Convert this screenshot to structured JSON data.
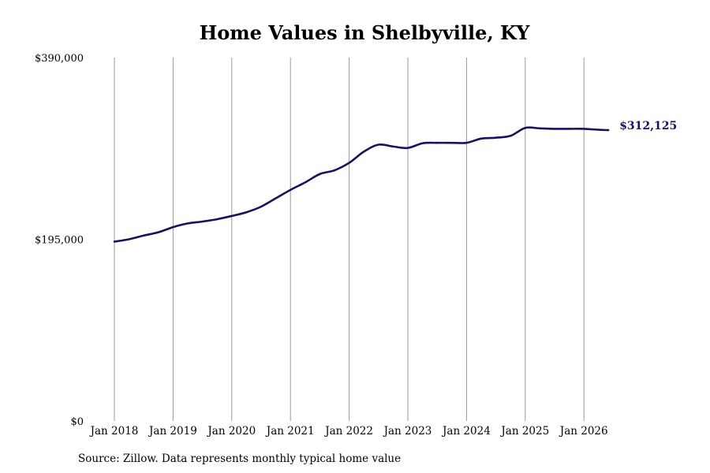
{
  "chart_data": {
    "type": "line",
    "title": "Home Values in Shelbyville, KY",
    "source": "Source: Zillow. Data represents monthly typical home value",
    "end_label": "$312,125",
    "ylim": [
      0,
      390000
    ],
    "y_ticks": [
      {
        "value": 0,
        "label": "$0"
      },
      {
        "value": 195000,
        "label": "$195,000"
      },
      {
        "value": 390000,
        "label": "$390,000"
      }
    ],
    "x_ticks": [
      {
        "value": "2018-01",
        "label": "Jan 2018"
      },
      {
        "value": "2019-01",
        "label": "Jan 2019"
      },
      {
        "value": "2020-01",
        "label": "Jan 2020"
      },
      {
        "value": "2021-01",
        "label": "Jan 2021"
      },
      {
        "value": "2022-01",
        "label": "Jan 2022"
      },
      {
        "value": "2023-01",
        "label": "Jan 2023"
      },
      {
        "value": "2024-01",
        "label": "Jan 2024"
      },
      {
        "value": "2025-01",
        "label": "Jan 2025"
      },
      {
        "value": "2026-01",
        "label": "Jan 2026"
      }
    ],
    "grid": {
      "vertical": true,
      "horizontal": false
    },
    "colors": {
      "line": "#15135e",
      "grid": "#999999",
      "end_label": "#15135e"
    },
    "series": [
      {
        "points": [
          [
            "2018-01",
            192500
          ],
          [
            "2018-04",
            195000
          ],
          [
            "2018-07",
            199000
          ],
          [
            "2018-10",
            202500
          ],
          [
            "2019-01",
            208000
          ],
          [
            "2019-04",
            212000
          ],
          [
            "2019-07",
            214000
          ],
          [
            "2019-10",
            216500
          ],
          [
            "2020-01",
            220000
          ],
          [
            "2020-04",
            224000
          ],
          [
            "2020-07",
            230000
          ],
          [
            "2020-10",
            239000
          ],
          [
            "2021-01",
            248000
          ],
          [
            "2021-04",
            256000
          ],
          [
            "2021-07",
            265000
          ],
          [
            "2021-10",
            269000
          ],
          [
            "2022-01",
            277000
          ],
          [
            "2022-04",
            289000
          ],
          [
            "2022-07",
            296500
          ],
          [
            "2022-10",
            294500
          ],
          [
            "2023-01",
            293000
          ],
          [
            "2023-04",
            298000
          ],
          [
            "2023-07",
            298500
          ],
          [
            "2023-10",
            298500
          ],
          [
            "2024-01",
            298500
          ],
          [
            "2024-04",
            303000
          ],
          [
            "2024-07",
            304000
          ],
          [
            "2024-10",
            306000
          ],
          [
            "2025-01",
            314500
          ],
          [
            "2025-04",
            314000
          ],
          [
            "2025-07",
            313500
          ],
          [
            "2025-10",
            313500
          ],
          [
            "2026-01",
            313500
          ],
          [
            "2026-04",
            312500
          ],
          [
            "2026-06",
            312125
          ]
        ]
      }
    ]
  }
}
